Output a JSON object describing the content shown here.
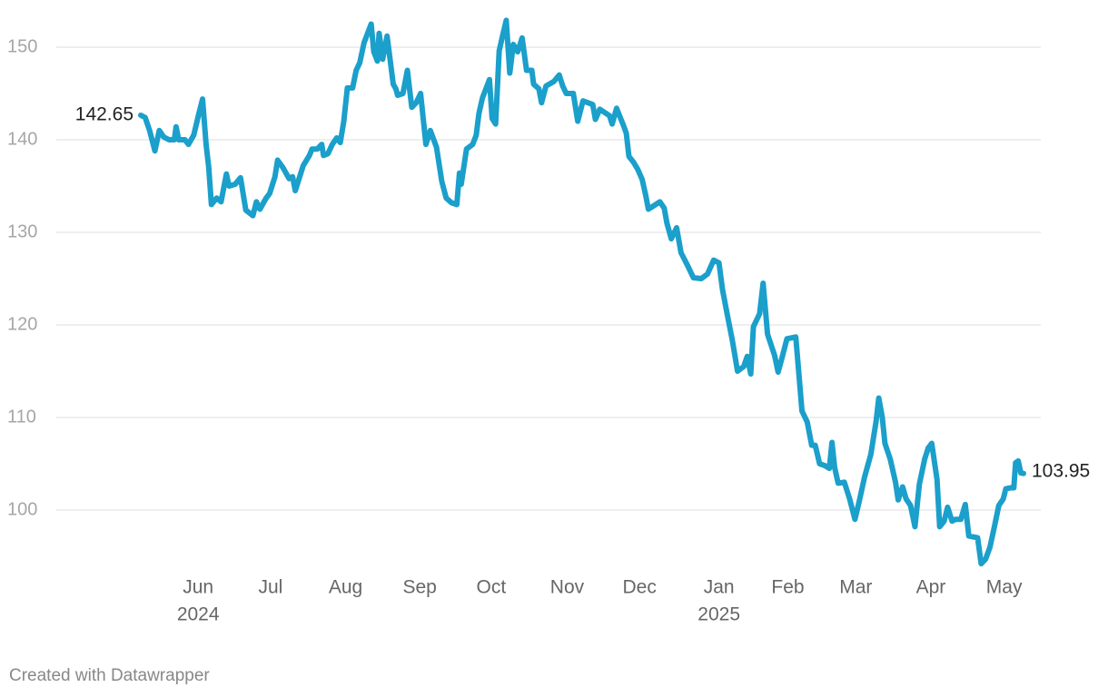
{
  "chart_data": {
    "type": "line",
    "x": [
      2024.35,
      2024.355,
      2024.36,
      2024.366,
      2024.371,
      2024.376,
      2024.382,
      2024.388,
      2024.39,
      2024.393,
      2024.4,
      2024.404,
      2024.41,
      2024.415,
      2024.42,
      2024.424,
      2024.427,
      2024.43,
      2024.436,
      2024.441,
      2024.447,
      2024.45,
      2024.457,
      2024.463,
      2024.469,
      2024.477,
      2024.481,
      2024.485,
      2024.492,
      2024.496,
      2024.502,
      2024.505,
      2024.511,
      2024.518,
      2024.522,
      2024.525,
      2024.53,
      2024.534,
      2024.541,
      2024.544,
      2024.55,
      2024.555,
      2024.557,
      2024.562,
      2024.567,
      2024.572,
      2024.576,
      2024.58,
      2024.584,
      2024.59,
      2024.594,
      2024.598,
      2024.603,
      2024.611,
      2024.614,
      2024.618,
      2024.62,
      2024.624,
      2024.629,
      2024.632,
      2024.636,
      2024.639,
      2024.641,
      2024.647,
      2024.652,
      2024.657,
      2024.662,
      2024.667,
      2024.673,
      2024.678,
      2024.685,
      2024.691,
      2024.696,
      2024.702,
      2024.708,
      2024.711,
      2024.713,
      2024.719,
      2024.726,
      2024.73,
      2024.733,
      2024.737,
      2024.745,
      2024.748,
      2024.752,
      2024.756,
      2024.76,
      2024.764,
      2024.768,
      2024.772,
      2024.777,
      2024.782,
      2024.787,
      2024.793,
      2024.795,
      2024.801,
      2024.804,
      2024.809,
      2024.818,
      2024.824,
      2024.828,
      2024.832,
      2024.84,
      2024.845,
      2024.851,
      2024.862,
      2024.865,
      2024.87,
      2024.881,
      2024.884,
      2024.889,
      2024.897,
      2024.9,
      2024.903,
      2024.908,
      2024.913,
      2024.918,
      2024.922,
      2024.925,
      2024.93,
      2024.938,
      2024.943,
      2024.946,
      2024.951,
      2024.957,
      2024.962,
      2024.969,
      2024.976,
      2024.985,
      2024.992,
      2024.999,
      2025.005,
      2025.009,
      2025.014,
      2025.02,
      2025.026,
      2025.033,
      2025.037,
      2025.041,
      2025.044,
      2025.051,
      2025.055,
      2025.06,
      2025.068,
      2025.072,
      2025.076,
      2025.082,
      2025.092,
      2025.095,
      2025.099,
      2025.105,
      2025.11,
      2025.114,
      2025.119,
      2025.125,
      2025.13,
      2025.133,
      2025.136,
      2025.14,
      2025.147,
      2025.153,
      2025.159,
      2025.164,
      2025.17,
      2025.177,
      2025.183,
      2025.186,
      2025.19,
      2025.193,
      2025.199,
      2025.205,
      2025.208,
      2025.213,
      2025.217,
      2025.222,
      2025.227,
      2025.232,
      2025.238,
      2025.242,
      2025.246,
      2025.252,
      2025.255,
      2025.26,
      2025.264,
      2025.269,
      2025.273,
      2025.279,
      2025.284,
      2025.288,
      2025.293,
      2025.298,
      2025.302,
      2025.307,
      2025.312,
      2025.317,
      2025.322,
      2025.327,
      2025.33,
      2025.335,
      2025.339,
      2025.341,
      2025.344,
      2025.347,
      2025.35
    ],
    "values": [
      142.65,
      142.4,
      141,
      138.8,
      141,
      140.3,
      140,
      140,
      141.4,
      140,
      140,
      139.5,
      140.5,
      142.5,
      144.4,
      139.5,
      137,
      133,
      133.7,
      133.3,
      136.3,
      135,
      135.2,
      135.9,
      132.4,
      131.8,
      133.3,
      132.5,
      133.7,
      134.2,
      136,
      137.8,
      137,
      135.8,
      136,
      134.5,
      136,
      137.2,
      138.3,
      139,
      139,
      139.5,
      138.3,
      138.5,
      139.5,
      140.2,
      139.7,
      142,
      145.6,
      145.6,
      147.5,
      148.3,
      150.5,
      152.5,
      149.5,
      148.5,
      151.5,
      148.7,
      151.2,
      149,
      146,
      145.5,
      144.8,
      145,
      147.5,
      143.5,
      144,
      145,
      139.5,
      141,
      139.2,
      135.5,
      133.7,
      133.2,
      133,
      136.4,
      135.2,
      139,
      139.5,
      140.5,
      142.8,
      144.5,
      146.5,
      142.3,
      141.7,
      149.6,
      151.3,
      152.9,
      147.2,
      150.3,
      149.5,
      151,
      147.5,
      147.5,
      146,
      145.5,
      144,
      145.8,
      146.3,
      147,
      145.8,
      145,
      145,
      142,
      144.2,
      143.8,
      142.2,
      143.3,
      142.6,
      141.7,
      143.4,
      141.5,
      140.7,
      138.2,
      137.6,
      136.8,
      135.7,
      134,
      132.5,
      132.8,
      133.3,
      132.6,
      131,
      129.3,
      130.5,
      127.8,
      126.5,
      125.1,
      125,
      125.5,
      127,
      126.7,
      123.8,
      121.3,
      118.4,
      115,
      115.5,
      116.6,
      114.7,
      119.8,
      121.2,
      124.5,
      119,
      116.7,
      114.9,
      116.3,
      118.5,
      118.7,
      115.3,
      110.7,
      109.5,
      107,
      107,
      105,
      104.8,
      104.5,
      107.3,
      104.6,
      102.9,
      103,
      101.2,
      99,
      101,
      103.6,
      106,
      109.6,
      112.1,
      110,
      107.2,
      105.5,
      103,
      101.1,
      102.5,
      101.2,
      100.5,
      98.2,
      102.8,
      105.5,
      106.7,
      107.2,
      103.3,
      98.2,
      98.8,
      100.3,
      98.8,
      99,
      99,
      100.6,
      97.2,
      97.1,
      97,
      94.2,
      94.7,
      96,
      98.2,
      100.5,
      101.2,
      102.3,
      102.4,
      102.4,
      105.1,
      105.3,
      104,
      103.95
    ],
    "color": "#1b9fcb",
    "xlim": [
      2024.35,
      2025.35
    ],
    "xticks": [
      {
        "value": 2024.415,
        "label": "Jun"
      },
      {
        "value": 2024.497,
        "label": "Jul"
      },
      {
        "value": 2024.582,
        "label": "Aug"
      },
      {
        "value": 2024.666,
        "label": "Sep"
      },
      {
        "value": 2024.747,
        "label": "Oct"
      },
      {
        "value": 2024.833,
        "label": "Nov"
      },
      {
        "value": 2024.915,
        "label": "Dec"
      },
      {
        "value": 2025.005,
        "label": "Jan"
      },
      {
        "value": 2025.083,
        "label": "Feb"
      },
      {
        "value": 2025.16,
        "label": "Mar"
      },
      {
        "value": 2025.245,
        "label": "Apr"
      },
      {
        "value": 2025.328,
        "label": "May"
      }
    ],
    "xtick_years": [
      {
        "value": 2024.415,
        "label": "2024"
      },
      {
        "value": 2025.005,
        "label": "2025"
      }
    ],
    "ylim": [
      94,
      153
    ],
    "yticks": [
      100,
      110,
      120,
      130,
      140,
      150
    ],
    "grid": true,
    "credit": "Created with Datawrapper"
  }
}
